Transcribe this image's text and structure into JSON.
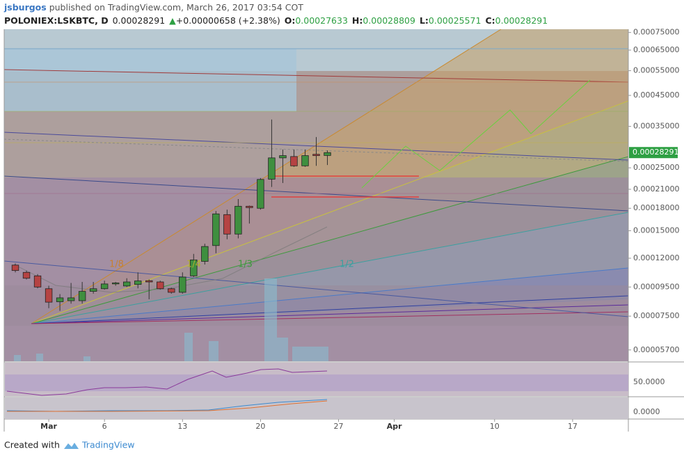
{
  "header": {
    "author": "jsburgos",
    "published": " published on TradingView.com, March 26, 2017 03:54 COT",
    "symbol": "POLONIEX:LSKBTC, D",
    "last": "0.00028291",
    "change_arrow": "▲",
    "change": "+0.00000658 (+2.38%)",
    "ohlc": [
      {
        "label": "O:",
        "value": "0.00027633"
      },
      {
        "label": "H:",
        "value": "0.00028809"
      },
      {
        "label": "L:",
        "value": "0.00025571"
      },
      {
        "label": "C:",
        "value": "0.00028291"
      }
    ]
  },
  "chart_data": {
    "type": "candlestick",
    "log_scale": true,
    "up_color": "#3f8f3f",
    "down_color": "#b54343",
    "x": [
      "2017-02-26",
      "2017-02-27",
      "2017-02-28",
      "2017-03-01",
      "2017-03-02",
      "2017-03-03",
      "2017-03-04",
      "2017-03-05",
      "2017-03-06",
      "2017-03-07",
      "2017-03-08",
      "2017-03-09",
      "2017-03-10",
      "2017-03-11",
      "2017-03-12",
      "2017-03-13",
      "2017-03-14",
      "2017-03-15",
      "2017-03-16",
      "2017-03-17",
      "2017-03-18",
      "2017-03-19",
      "2017-03-20",
      "2017-03-21",
      "2017-03-22",
      "2017-03-23",
      "2017-03-24",
      "2017-03-25",
      "2017-03-26"
    ],
    "open": [
      0.0001135,
      0.000107,
      0.000104,
      9.37e-05,
      8.43e-05,
      8.5e-05,
      8.5e-05,
      9.17e-05,
      9.37e-05,
      9.74e-05,
      9.58e-05,
      9.7e-05,
      0.0001,
      9.9e-05,
      9.37e-05,
      9.1e-05,
      0.000104,
      0.000117,
      0.000133,
      0.000171,
      0.000146,
      0.000183,
      0.00018,
      0.000228,
      0.000271,
      0.000274,
      0.000254,
      0.000279,
      0.00027633
    ],
    "high": [
      0.000115,
      0.0001085,
      0.0001055,
      9.6e-05,
      8.97e-05,
      9.82e-05,
      9.9e-05,
      9.9e-05,
      0.0001,
      9.9e-05,
      0.000102,
      0.000107,
      0.000101,
      0.0001,
      9.45e-05,
      0.000107,
      0.0001243,
      0.000135,
      0.000176,
      0.000178,
      0.000194,
      0.000184,
      0.00023,
      0.00037,
      0.00029,
      0.00029,
      0.00029,
      0.000321,
      0.00028809
    ],
    "low": [
      0.000107,
      0.000101,
      9.4e-05,
      8e-05,
      7.83e-05,
      8.3e-05,
      8.3e-05,
      9e-05,
      9.3e-05,
      9.6e-05,
      9.5e-05,
      9.4e-05,
      8.6e-05,
      9.3e-05,
      9e-05,
      9e-05,
      0.000103,
      0.000114,
      0.000125,
      0.00014,
      0.000141,
      0.000159,
      0.000178,
      0.000214,
      0.000221,
      0.000252,
      0.000252,
      0.000254,
      0.00025571
    ],
    "close": [
      0.0001086,
      0.000102,
      9.5e-05,
      8.4e-05,
      8.7e-05,
      8.7e-05,
      9.17e-05,
      9.37e-05,
      9.74e-05,
      9.82e-05,
      9.9e-05,
      9.98e-05,
      9.9e-05,
      9.37e-05,
      9.1e-05,
      0.000103,
      0.0001184,
      0.000132,
      0.000172,
      0.000146,
      0.000183,
      0.000181,
      0.0002275,
      0.000271,
      0.000276,
      0.000254,
      0.000276,
      0.000276,
      0.00028291
    ],
    "xlim": [
      "2017-02-25",
      "2017-04-22"
    ],
    "xticks": [
      {
        "value": "2017-03-01",
        "label": "Mar"
      },
      {
        "value": "2017-03-06",
        "label": "6"
      },
      {
        "value": "2017-03-13",
        "label": "13"
      },
      {
        "value": "2017-03-20",
        "label": "20"
      },
      {
        "value": "2017-03-27",
        "label": "27"
      },
      {
        "value": "2017-04-01",
        "label": "Apr"
      },
      {
        "value": "2017-04-10",
        "label": "10"
      },
      {
        "value": "2017-04-17",
        "label": "17"
      }
    ],
    "ylim": [
      5.2e-05,
      0.00077
    ],
    "yticks": [
      {
        "value": 0.00075,
        "label": "0.00075000"
      },
      {
        "value": 0.00065,
        "label": "0.00065000"
      },
      {
        "value": 0.00055,
        "label": "0.00055000"
      },
      {
        "value": 0.00045,
        "label": "0.00045000"
      },
      {
        "value": 0.00035,
        "label": "0.00035000"
      },
      {
        "value": 0.00025,
        "label": "0.00025000"
      },
      {
        "value": 0.00021,
        "label": "0.00021000"
      },
      {
        "value": 0.00018,
        "label": "0.00018000"
      },
      {
        "value": 0.00015,
        "label": "0.00015000"
      },
      {
        "value": 0.00012,
        "label": "0.00012000"
      },
      {
        "value": 9.5e-05,
        "label": "0.00009500"
      },
      {
        "value": 7.5e-05,
        "label": "0.00007500"
      },
      {
        "value": 5.7e-05,
        "label": "0.00005700"
      }
    ],
    "annotations": [
      "1/8",
      "1/4",
      "1/3",
      "1/2"
    ]
  },
  "indicators": {
    "rsi_tick": "50.0000",
    "macd_tick": "0.0000"
  },
  "footer": {
    "created": "Created with",
    "brand": "TradingView"
  }
}
